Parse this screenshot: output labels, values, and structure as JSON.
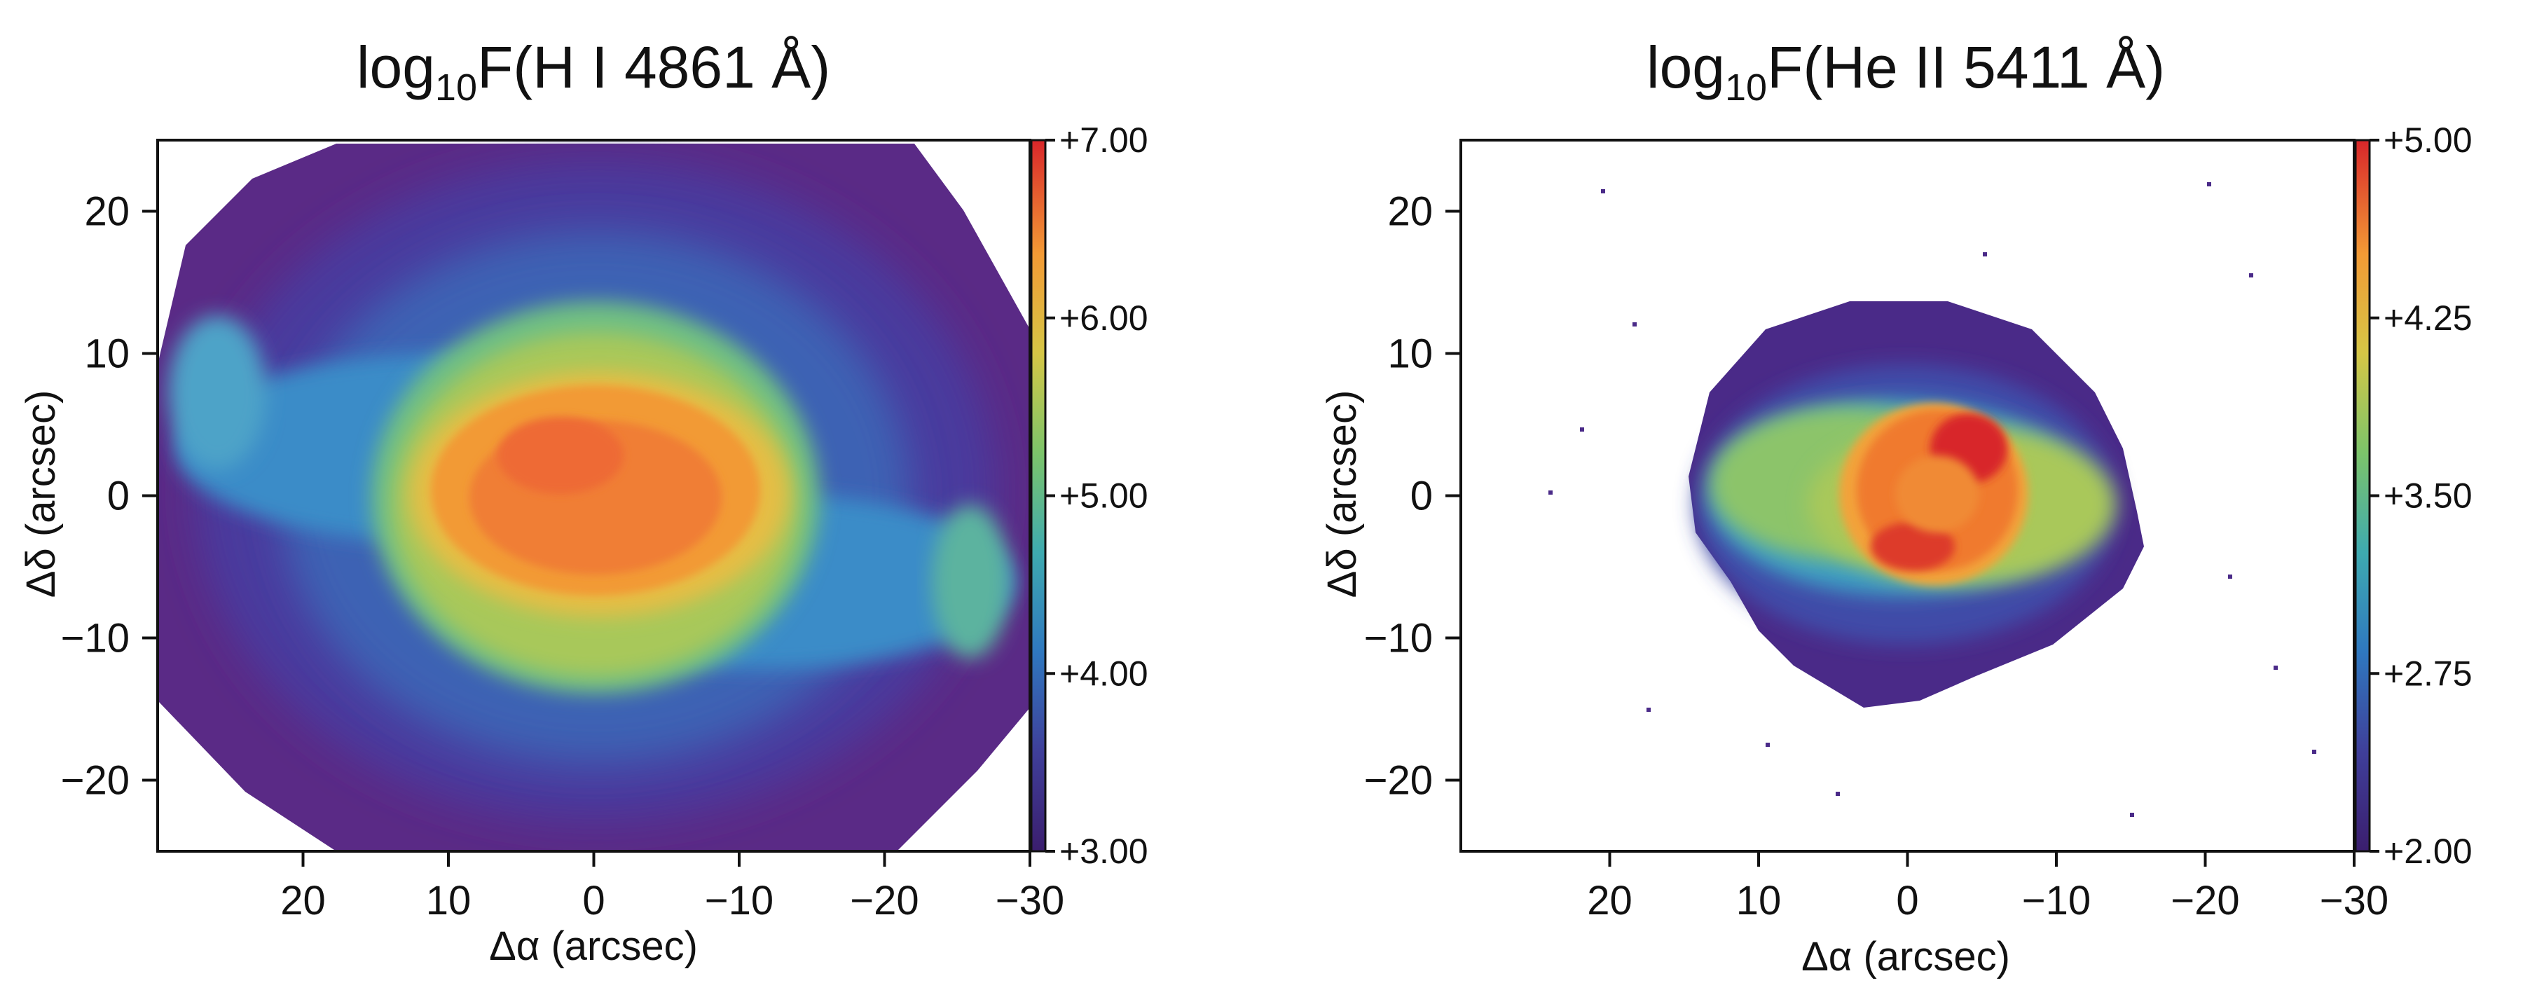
{
  "colors": {
    "colormap": [
      "#3b1e6e",
      "#3f4ba8",
      "#2f86c4",
      "#59b98a",
      "#b8c84a",
      "#f0b03c",
      "#f07a2e",
      "#d8262a"
    ],
    "background": "#ffffff",
    "axes": "#111111"
  },
  "chart_data": [
    {
      "type": "heatmap",
      "title_prefix": "log",
      "title_sub": "10",
      "title_suffix": "F(H I 4861 Å)",
      "xlabel": "Δα (arcsec)",
      "ylabel": "Δδ (arcsec)",
      "xlim": [
        30,
        -30
      ],
      "ylim": [
        -25,
        25
      ],
      "xticks": [
        {
          "value": 20,
          "label": "20"
        },
        {
          "value": 10,
          "label": "10"
        },
        {
          "value": 0,
          "label": "0"
        },
        {
          "value": -10,
          "label": "−10"
        },
        {
          "value": -20,
          "label": "−20"
        },
        {
          "value": -30,
          "label": "−30"
        }
      ],
      "yticks": [
        {
          "value": 20,
          "label": "20"
        },
        {
          "value": 10,
          "label": "10"
        },
        {
          "value": 0,
          "label": "0"
        },
        {
          "value": -10,
          "label": "−10"
        },
        {
          "value": -20,
          "label": "−20"
        }
      ],
      "colorbar": {
        "range": [
          3.0,
          7.0
        ],
        "ticks": [
          {
            "value": 7.0,
            "label": "+7.00"
          },
          {
            "value": 6.0,
            "label": "+6.00"
          },
          {
            "value": 5.0,
            "label": "+5.00"
          },
          {
            "value": 4.0,
            "label": "+4.00"
          },
          {
            "value": 3.0,
            "label": "+3.00"
          }
        ]
      },
      "features": [
        {
          "name": "bright inner shell",
          "center": [
            0,
            -1
          ],
          "semi_axes": [
            15,
            9
          ],
          "log_flux": 6.4
        },
        {
          "name": "bipolar lobes",
          "extent_x": [
            28,
            -28
          ],
          "log_flux": 5.0
        },
        {
          "name": "faint halo",
          "radius": 31,
          "log_flux": 3.3
        }
      ]
    },
    {
      "type": "heatmap",
      "title_prefix": "log",
      "title_sub": "10",
      "title_suffix": "F(He II 5411 Å)",
      "xlabel": "Δα (arcsec)",
      "ylabel": "Δδ (arcsec)",
      "xlim": [
        30,
        -30
      ],
      "ylim": [
        -25,
        25
      ],
      "xticks": [
        {
          "value": 20,
          "label": "20"
        },
        {
          "value": 10,
          "label": "10"
        },
        {
          "value": 0,
          "label": "0"
        },
        {
          "value": -10,
          "label": "−10"
        },
        {
          "value": -20,
          "label": "−20"
        },
        {
          "value": -30,
          "label": "−30"
        }
      ],
      "yticks": [
        {
          "value": 20,
          "label": "20"
        },
        {
          "value": 10,
          "label": "10"
        },
        {
          "value": 0,
          "label": "0"
        },
        {
          "value": -10,
          "label": "−10"
        },
        {
          "value": -20,
          "label": "−20"
        }
      ],
      "colorbar": {
        "range": [
          2.0,
          5.0
        ],
        "ticks": [
          {
            "value": 5.0,
            "label": "+5.00"
          },
          {
            "value": 4.25,
            "label": "+4.25"
          },
          {
            "value": 3.5,
            "label": "+3.50"
          },
          {
            "value": 2.75,
            "label": "+2.75"
          },
          {
            "value": 2.0,
            "label": "+2.00"
          }
        ]
      },
      "features": [
        {
          "name": "bright inner shell",
          "center": [
            -2,
            0
          ],
          "semi_axes": [
            6,
            6
          ],
          "log_flux": 4.7
        },
        {
          "name": "extended emission",
          "extent_x": [
            15,
            -15
          ],
          "log_flux": 3.6
        },
        {
          "name": "faint outer envelope",
          "extent_x": [
            16,
            -16
          ],
          "log_flux": 2.3
        }
      ]
    }
  ]
}
